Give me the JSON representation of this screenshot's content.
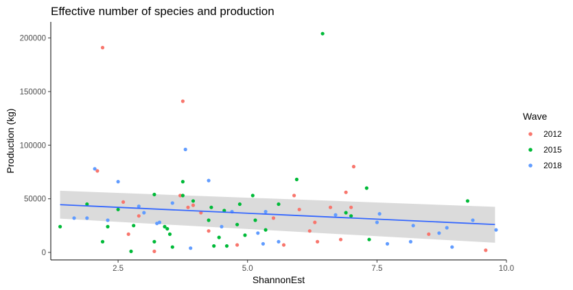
{
  "chart_data": {
    "type": "scatter",
    "title": "Effective number of species and production",
    "xlabel": "ShannonEst",
    "ylabel": "Production (kg)",
    "xlim": [
      1.2,
      10.0
    ],
    "ylim": [
      -7000,
      215000
    ],
    "x_ticks": [
      2.5,
      5.0,
      7.5,
      10.0
    ],
    "x_tick_labels": [
      "2.5",
      "5.0",
      "7.5",
      "10.0"
    ],
    "y_ticks": [
      0,
      50000,
      100000,
      150000,
      200000
    ],
    "y_tick_labels": [
      "0",
      "50000",
      "100000",
      "150000",
      "200000"
    ],
    "grid": false,
    "legend": {
      "title": "Wave",
      "placement": "right"
    },
    "colors": {
      "2012": "#F8766D",
      "2015": "#00BA38",
      "2018": "#619CFF",
      "trend": "#3366FF",
      "band": "#d9d9d9"
    },
    "trend": {
      "type": "linear",
      "x": [
        1.38,
        9.78
      ],
      "y": [
        44500,
        26000
      ],
      "ci_lower": [
        31500,
        9000
      ],
      "ci_upper": [
        57500,
        42500
      ]
    },
    "series": [
      {
        "name": "2012",
        "points": [
          [
            2.1,
            76000
          ],
          [
            2.2,
            191000
          ],
          [
            2.6,
            47000
          ],
          [
            2.7,
            17000
          ],
          [
            2.9,
            34000
          ],
          [
            3.2,
            1000
          ],
          [
            3.75,
            141000
          ],
          [
            3.7,
            53000
          ],
          [
            3.85,
            42000
          ],
          [
            3.95,
            44000
          ],
          [
            4.1,
            37000
          ],
          [
            4.25,
            20000
          ],
          [
            4.8,
            7000
          ],
          [
            5.5,
            32000
          ],
          [
            5.7,
            7000
          ],
          [
            5.9,
            53000
          ],
          [
            6.0,
            40000
          ],
          [
            6.2,
            20000
          ],
          [
            6.3,
            28000
          ],
          [
            6.35,
            10000
          ],
          [
            6.6,
            42000
          ],
          [
            6.8,
            12000
          ],
          [
            6.9,
            56000
          ],
          [
            7.0,
            42000
          ],
          [
            7.05,
            80000
          ],
          [
            8.5,
            17000
          ],
          [
            9.6,
            2000
          ]
        ]
      },
      {
        "name": "2015",
        "points": [
          [
            1.38,
            24000
          ],
          [
            1.9,
            45000
          ],
          [
            2.2,
            10000
          ],
          [
            2.3,
            24000
          ],
          [
            2.5,
            40000
          ],
          [
            2.75,
            1000
          ],
          [
            2.8,
            25000
          ],
          [
            3.2,
            10000
          ],
          [
            3.2,
            54000
          ],
          [
            3.4,
            24000
          ],
          [
            3.45,
            22000
          ],
          [
            3.55,
            5000
          ],
          [
            3.5,
            17000
          ],
          [
            3.75,
            66000
          ],
          [
            3.75,
            53000
          ],
          [
            3.95,
            48000
          ],
          [
            4.25,
            30000
          ],
          [
            4.3,
            42000
          ],
          [
            4.35,
            6000
          ],
          [
            4.45,
            14000
          ],
          [
            4.6,
            6000
          ],
          [
            4.55,
            39000
          ],
          [
            4.8,
            26000
          ],
          [
            4.85,
            45000
          ],
          [
            4.95,
            16000
          ],
          [
            5.1,
            53000
          ],
          [
            5.15,
            30000
          ],
          [
            5.35,
            21000
          ],
          [
            5.6,
            45000
          ],
          [
            5.95,
            68000
          ],
          [
            6.45,
            204000
          ],
          [
            6.9,
            37000
          ],
          [
            7.0,
            34000
          ],
          [
            7.3,
            60000
          ],
          [
            7.35,
            12000
          ],
          [
            9.25,
            48000
          ]
        ]
      },
      {
        "name": "2018",
        "points": [
          [
            1.65,
            32000
          ],
          [
            1.9,
            32000
          ],
          [
            2.05,
            78000
          ],
          [
            2.3,
            30000
          ],
          [
            2.5,
            66000
          ],
          [
            2.9,
            43000
          ],
          [
            3.0,
            37000
          ],
          [
            3.25,
            27000
          ],
          [
            3.3,
            28000
          ],
          [
            3.55,
            46000
          ],
          [
            3.8,
            96000
          ],
          [
            3.9,
            4000
          ],
          [
            4.25,
            67000
          ],
          [
            4.5,
            24000
          ],
          [
            4.7,
            38000
          ],
          [
            5.2,
            18000
          ],
          [
            5.35,
            38000
          ],
          [
            5.3,
            8000
          ],
          [
            5.6,
            10000
          ],
          [
            6.7,
            35000
          ],
          [
            7.55,
            36000
          ],
          [
            7.5,
            28000
          ],
          [
            7.7,
            8000
          ],
          [
            8.15,
            10000
          ],
          [
            8.2,
            25000
          ],
          [
            8.7,
            18000
          ],
          [
            8.85,
            23000
          ],
          [
            8.95,
            5000
          ],
          [
            9.35,
            30000
          ],
          [
            9.8,
            21000
          ]
        ]
      }
    ]
  }
}
